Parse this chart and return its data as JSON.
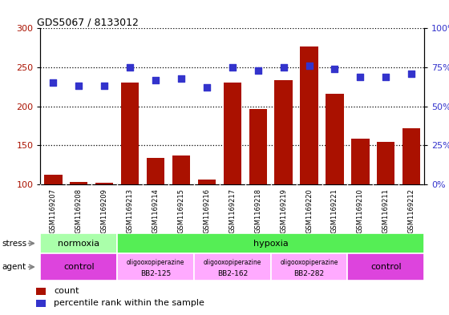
{
  "title": "GDS5067 / 8133012",
  "samples": [
    "GSM1169207",
    "GSM1169208",
    "GSM1169209",
    "GSM1169213",
    "GSM1169214",
    "GSM1169215",
    "GSM1169216",
    "GSM1169217",
    "GSM1169218",
    "GSM1169219",
    "GSM1169220",
    "GSM1169221",
    "GSM1169210",
    "GSM1169211",
    "GSM1169212"
  ],
  "counts": [
    112,
    103,
    102,
    230,
    134,
    137,
    106,
    230,
    197,
    234,
    277,
    216,
    158,
    154,
    172
  ],
  "percentiles": [
    65,
    63,
    63,
    75,
    67,
    68,
    62,
    75,
    73,
    75,
    76,
    74,
    69,
    69,
    71
  ],
  "bar_color": "#aa1100",
  "dot_color": "#3333cc",
  "ylim_left": [
    100,
    300
  ],
  "ylim_right": [
    0,
    100
  ],
  "yticks_left": [
    100,
    150,
    200,
    250,
    300
  ],
  "yticks_right": [
    0,
    25,
    50,
    75,
    100
  ],
  "stress_groups": [
    {
      "label": "normoxia",
      "start": 0,
      "end": 3,
      "color": "#aaffaa"
    },
    {
      "label": "hypoxia",
      "start": 3,
      "end": 15,
      "color": "#55ee55"
    }
  ],
  "agent_groups": [
    {
      "label": "control",
      "start": 0,
      "end": 3,
      "color": "#dd44dd"
    },
    {
      "label": "oligooxopiperazine\nBB2-125",
      "start": 3,
      "end": 6,
      "color": "#ffaaff"
    },
    {
      "label": "oligooxopiperazine\nBB2-162",
      "start": 6,
      "end": 9,
      "color": "#ffaaff"
    },
    {
      "label": "oligooxopiperazine\nBB2-282",
      "start": 9,
      "end": 12,
      "color": "#ffaaff"
    },
    {
      "label": "control",
      "start": 12,
      "end": 15,
      "color": "#dd44dd"
    }
  ],
  "legend_count_label": "count",
  "legend_pct_label": "percentile rank within the sample",
  "plot_bg": "#ffffff",
  "tick_area_bg": "#cccccc"
}
